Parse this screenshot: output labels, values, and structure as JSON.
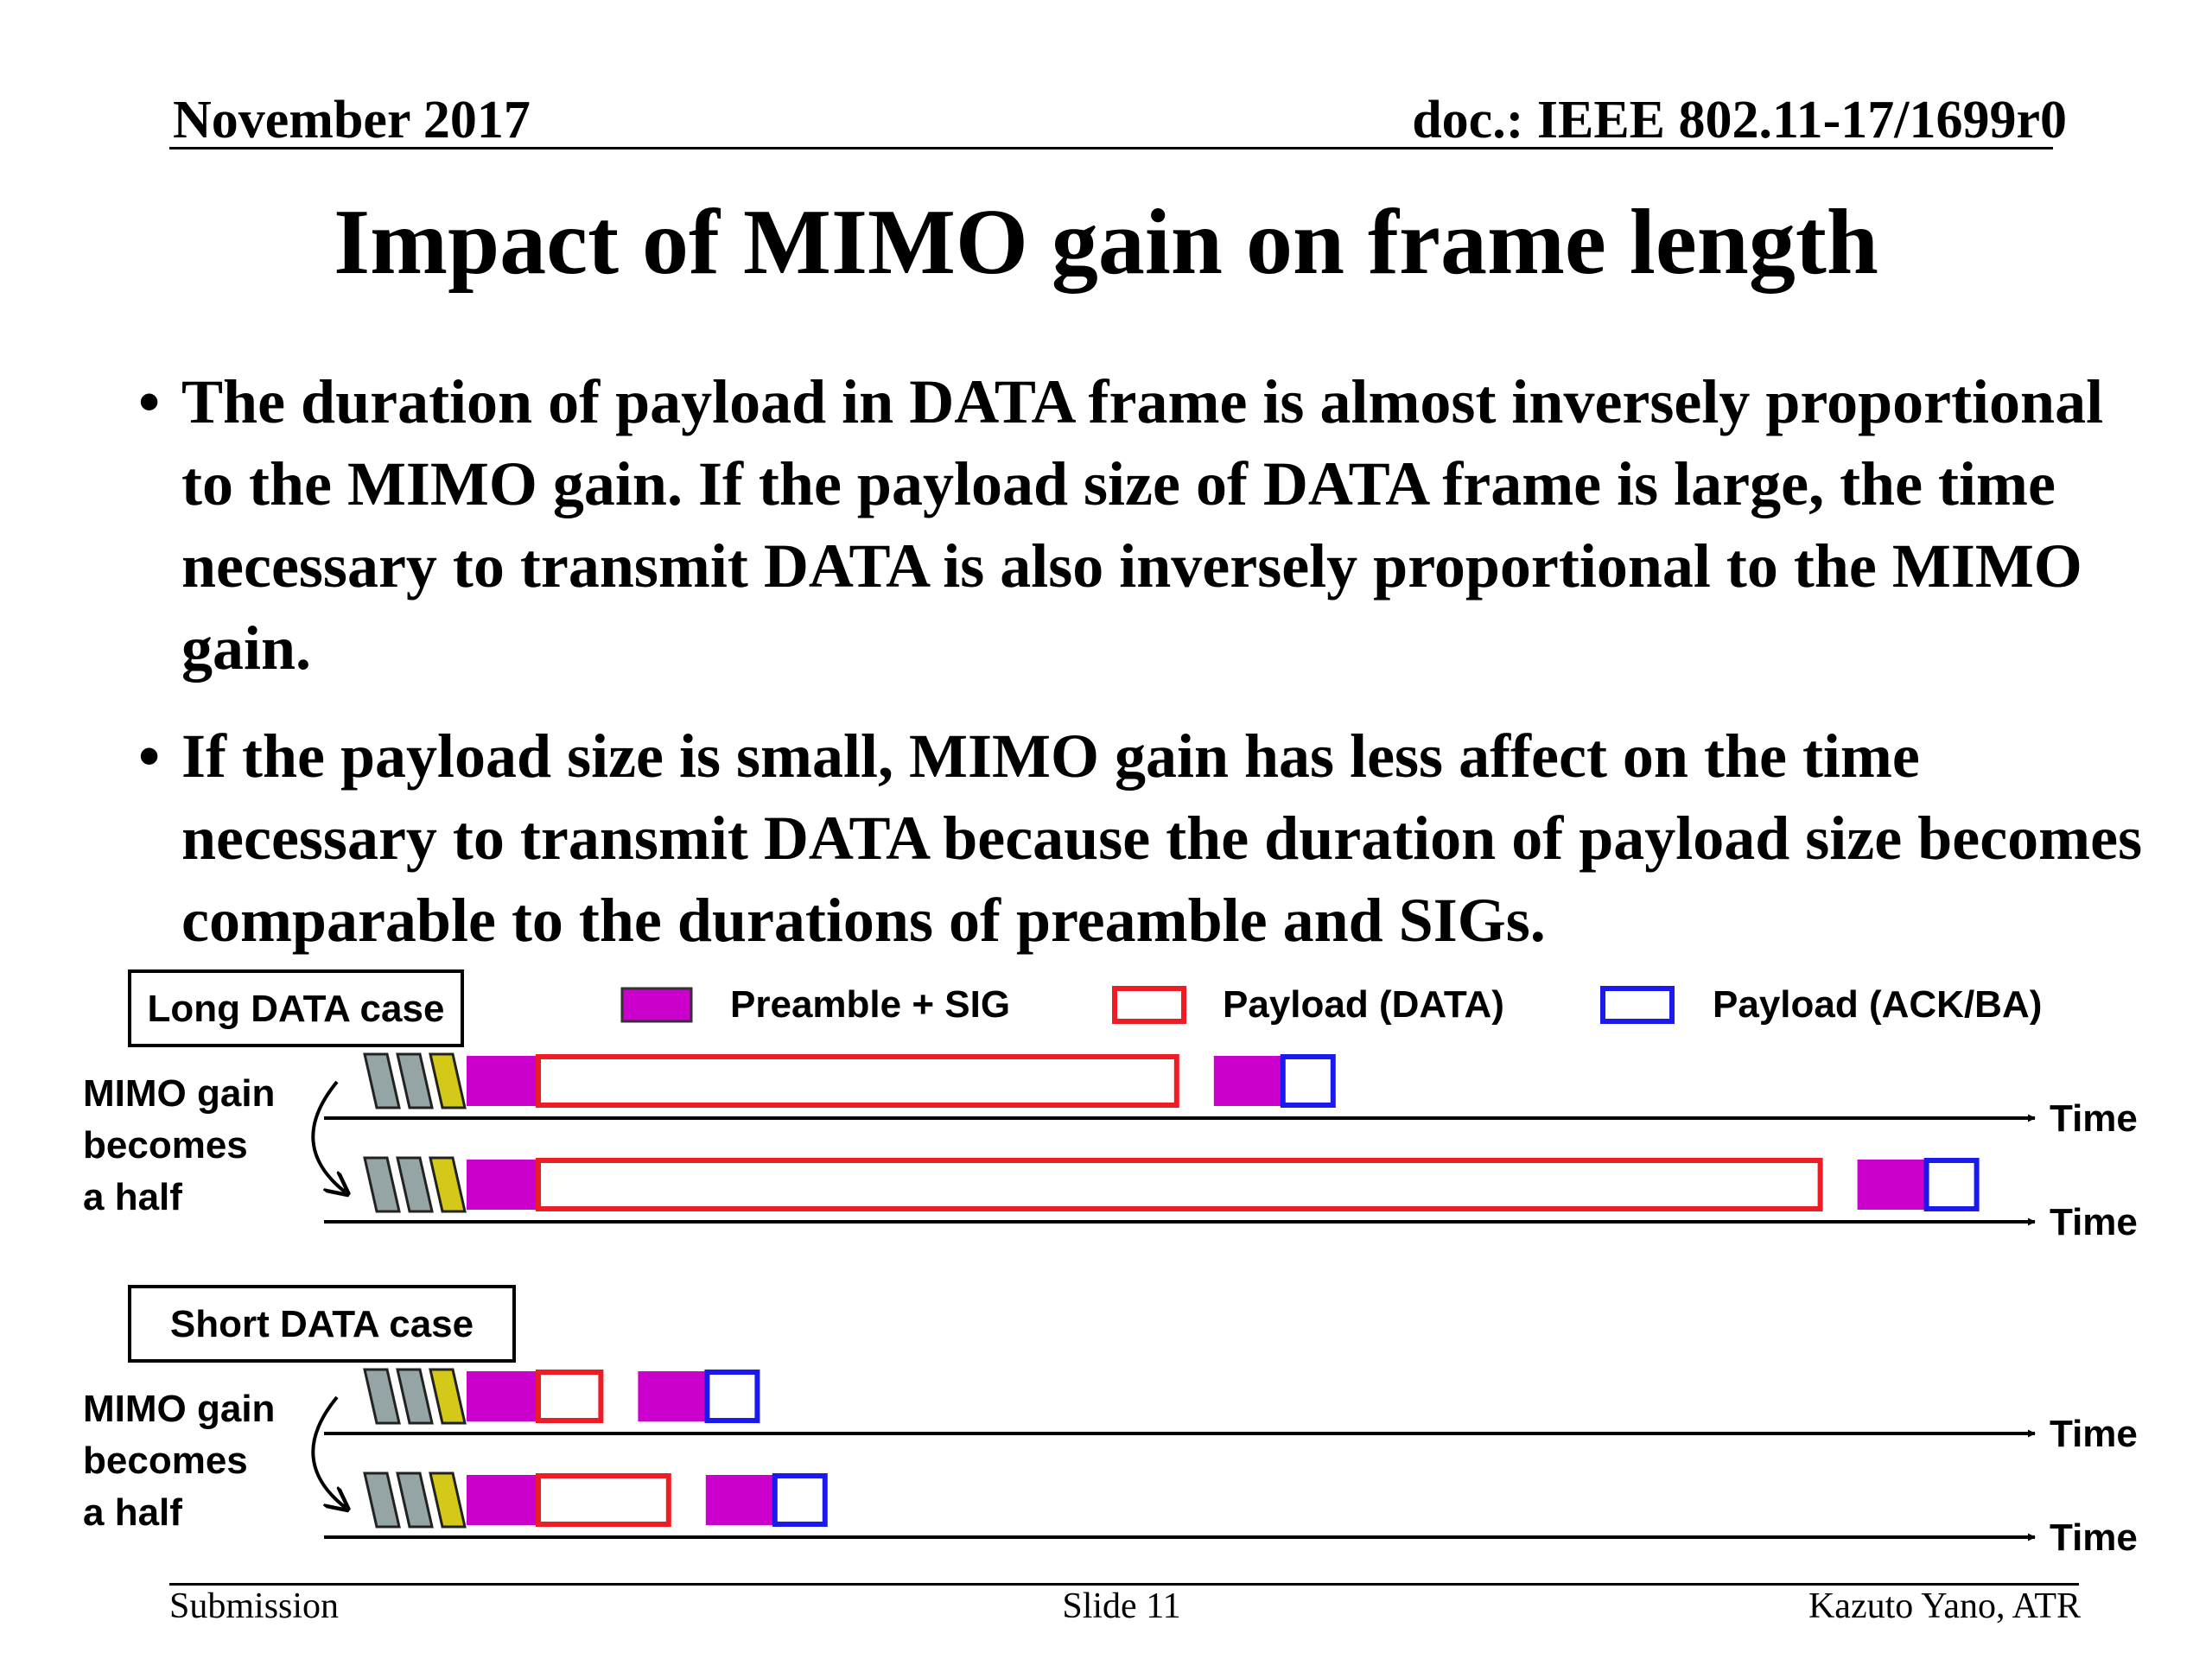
{
  "header": {
    "date": "November 2017",
    "doc": "doc.: IEEE 802.11-17/1699r0"
  },
  "title": "Impact of MIMO gain on frame length",
  "bullets": [
    "The duration of payload in DATA frame is almost inversely proportional to the MIMO gain. If the payload size of DATA frame is large, the time necessary to transmit DATA is also inversely proportional to the MIMO gain.",
    "If the payload size is small, MIMO gain has less affect on the time necessary to transmit DATA because the duration of payload size becomes comparable to the durations of preamble and SIGs."
  ],
  "diagram": {
    "legend": [
      {
        "label": "Preamble + SIG",
        "color": "#cc00cc",
        "style": "filled"
      },
      {
        "label": "Payload (DATA)",
        "color": "#ee1c24",
        "style": "outline"
      },
      {
        "label": "Payload (ACK/BA)",
        "color": "#1a1aee",
        "style": "outline"
      }
    ],
    "time_label": "Time",
    "mimo_label": [
      "MIMO gain",
      "becomes",
      "a half"
    ],
    "cases": [
      {
        "label": "Long DATA case",
        "rows": [
          {
            "data_len": 7.6
          },
          {
            "data_len": 15.2
          }
        ]
      },
      {
        "label": "Short DATA case",
        "rows": [
          {
            "data_len": 0.8
          },
          {
            "data_len": 1.6
          }
        ]
      }
    ],
    "colors": {
      "backoff": "#95a5a6",
      "aifs": "#d4c818",
      "preamble": "#cc00cc",
      "data": "#ee1c24",
      "ack": "#1a1aee"
    }
  },
  "footer": {
    "left": "Submission",
    "center": "Slide 11",
    "right": "Kazuto Yano, ATR"
  }
}
